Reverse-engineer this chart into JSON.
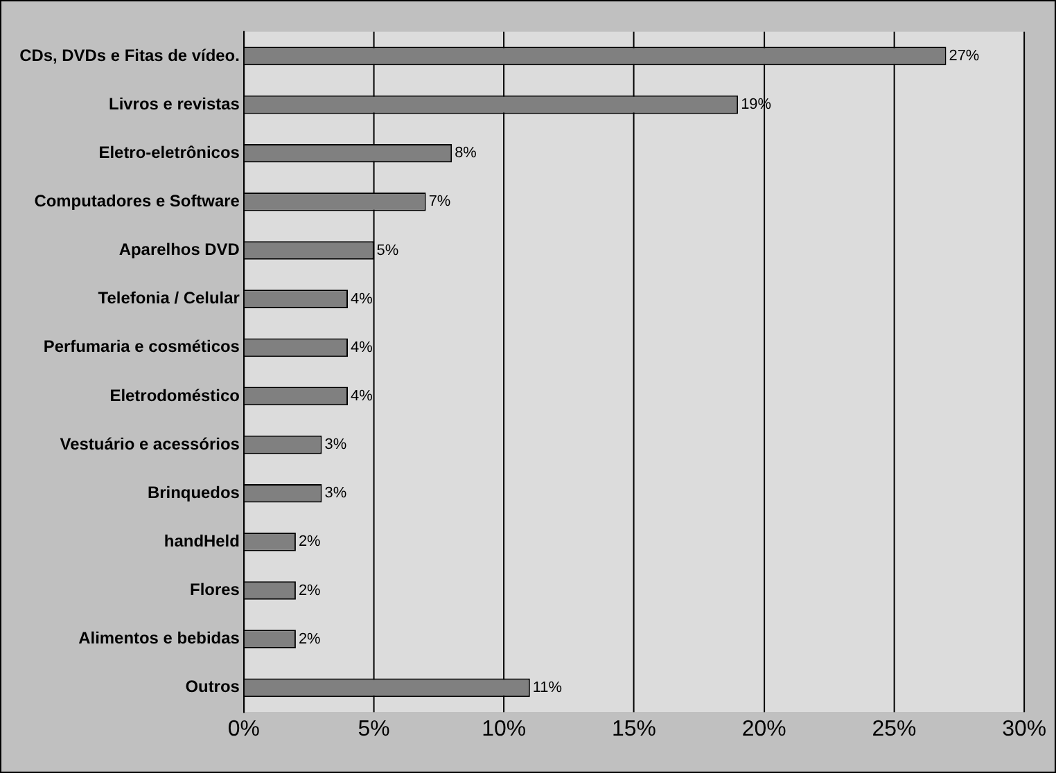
{
  "chart_data": {
    "type": "bar",
    "orientation": "horizontal",
    "categories": [
      "CDs, DVDs e Fitas de vídeo.",
      "Livros e revistas",
      "Eletro-eletrônicos",
      "Computadores e Software",
      "Aparelhos DVD",
      "Telefonia / Celular",
      "Perfumaria e cosméticos",
      "Eletrodoméstico",
      "Vestuário e acessórios",
      "Brinquedos",
      "handHeld",
      "Flores",
      "Alimentos e bebidas",
      "Outros"
    ],
    "values": [
      27,
      19,
      8,
      7,
      5,
      4,
      4,
      4,
      3,
      3,
      2,
      2,
      2,
      11
    ],
    "value_labels": [
      "27%",
      "19%",
      "8%",
      "7%",
      "5%",
      "4%",
      "4%",
      "4%",
      "3%",
      "3%",
      "2%",
      "2%",
      "2%",
      "11%"
    ],
    "color": "#808080",
    "xlim": [
      0,
      30
    ],
    "xticks": [
      {
        "value": 0,
        "label": "0%"
      },
      {
        "value": 5,
        "label": "5%"
      },
      {
        "value": 10,
        "label": "10%"
      },
      {
        "value": 15,
        "label": "15%"
      },
      {
        "value": 20,
        "label": "20%"
      },
      {
        "value": 25,
        "label": "25%"
      },
      {
        "value": 30,
        "label": "30%"
      }
    ],
    "grid": "x",
    "legend": false
  }
}
